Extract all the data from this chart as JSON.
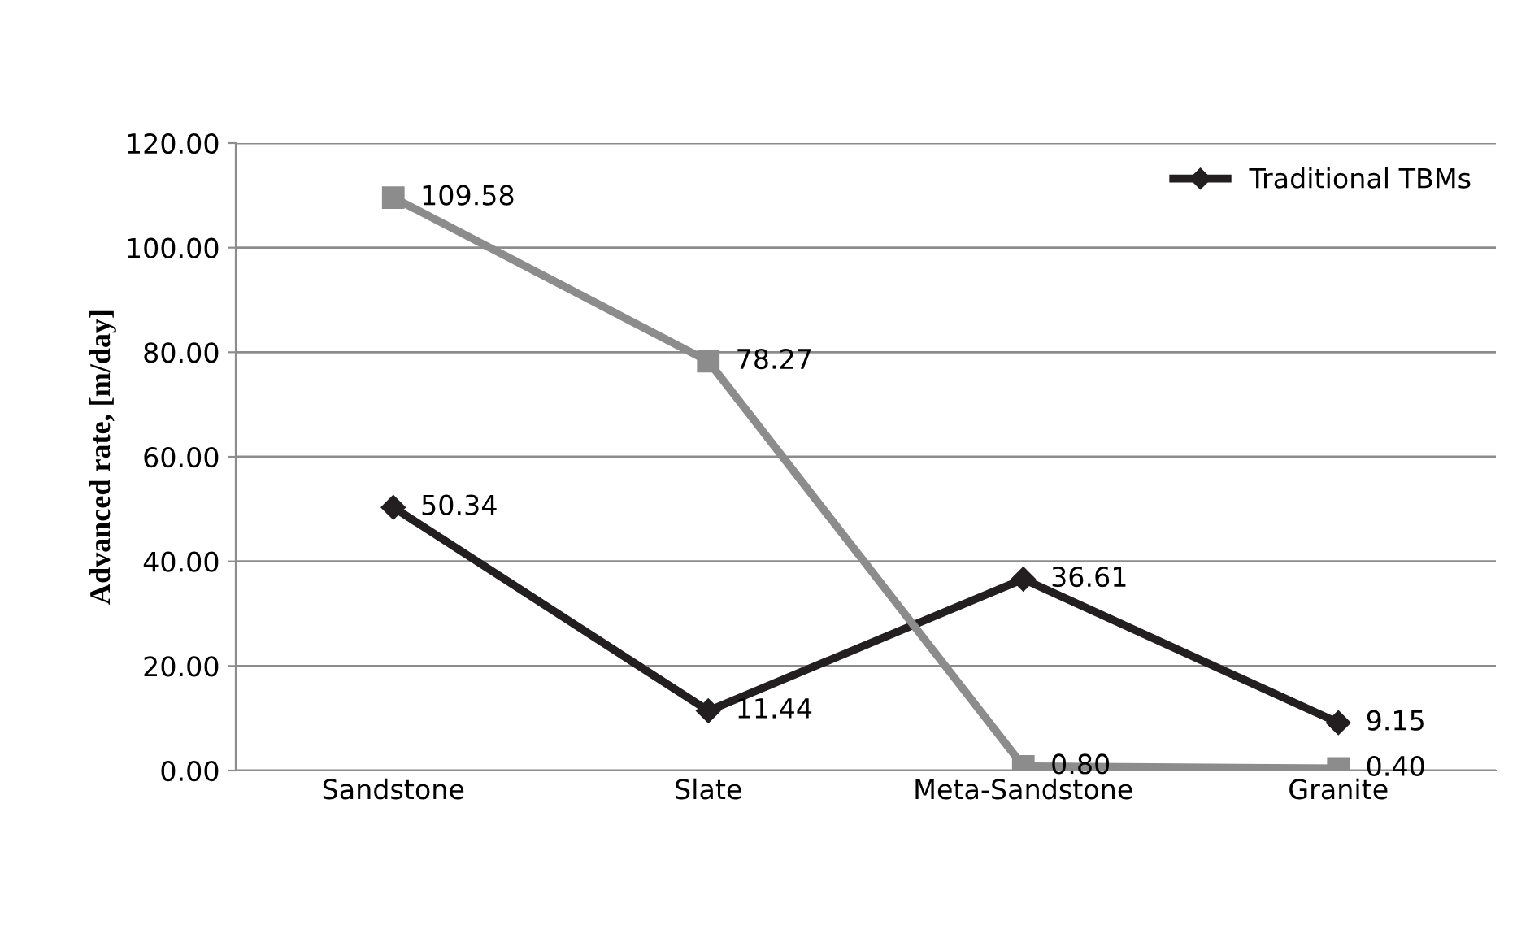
{
  "chart_data": {
    "type": "line",
    "ylabel": "Advanced rate, [m/day]",
    "categories": [
      "Sandstone",
      "Slate",
      "Meta-Sandstone",
      "Granite"
    ],
    "series": [
      {
        "name": "Traditional TBMs",
        "color": "#231f20",
        "marker": "diamond",
        "values": [
          50.34,
          11.44,
          36.61,
          9.15
        ],
        "value_labels": [
          "50.34",
          "11.44",
          "36.61",
          "9.15"
        ]
      },
      {
        "color": "#8c8c8c",
        "marker": "square",
        "values": [
          109.58,
          78.27,
          0.8,
          0.4
        ],
        "value_labels": [
          "109.58",
          "78.27",
          "0.80",
          "0.40"
        ]
      }
    ],
    "ylim": [
      0,
      120
    ],
    "yticks": [
      {
        "value": 0,
        "label": "0.00"
      },
      {
        "value": 20,
        "label": "20.00"
      },
      {
        "value": 40,
        "label": "40.00"
      },
      {
        "value": 60,
        "label": "60.00"
      },
      {
        "value": 80,
        "label": "80.00"
      },
      {
        "value": 100,
        "label": "100.00"
      },
      {
        "value": 120,
        "label": "120.00"
      }
    ],
    "grid": "y",
    "legend": "top right",
    "line_style": "solid"
  }
}
